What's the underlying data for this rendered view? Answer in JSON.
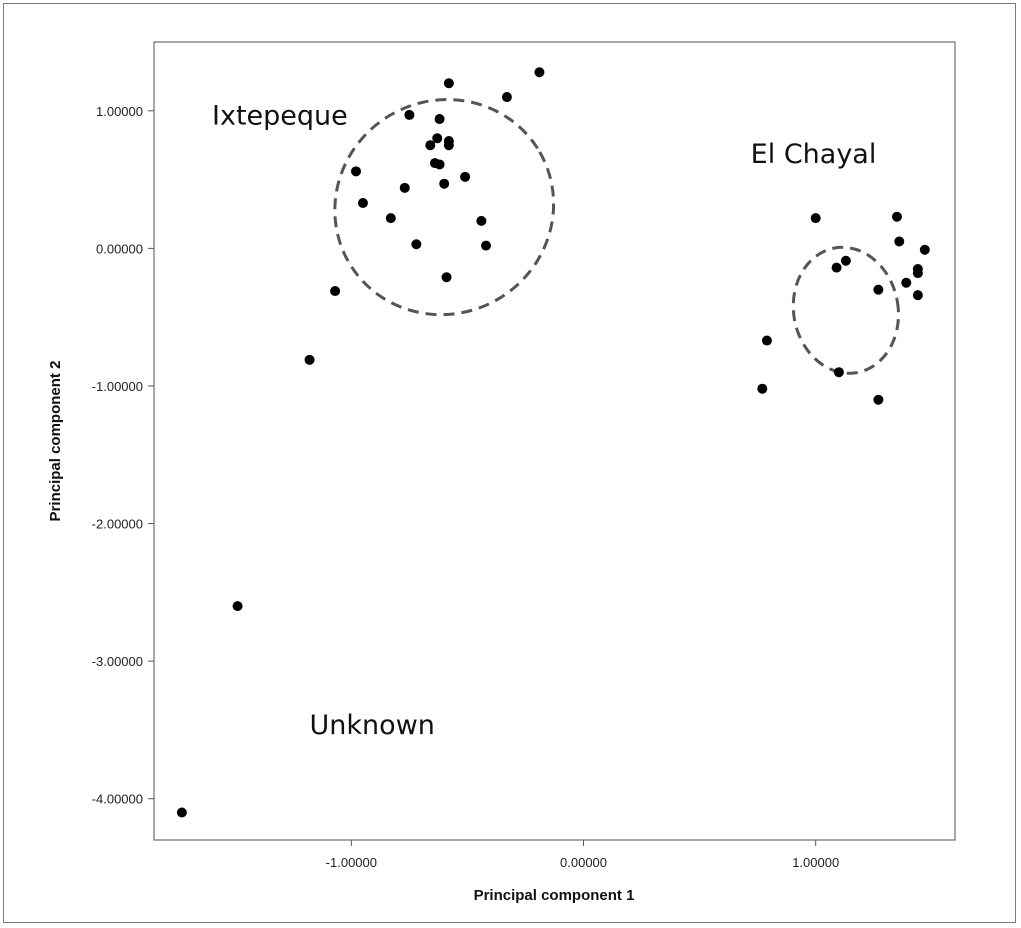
{
  "chart_data": {
    "type": "scatter",
    "title": "",
    "xlabel": "Principal component 1",
    "ylabel": "Principal component 2",
    "xlim": [
      -1.85,
      1.6
    ],
    "ylim": [
      -4.3,
      1.5
    ],
    "x_ticks": [
      {
        "value": -1.0,
        "label": "-1.00000"
      },
      {
        "value": 0.0,
        "label": "0.00000"
      },
      {
        "value": 1.0,
        "label": "1.00000"
      }
    ],
    "y_ticks": [
      {
        "value": 1.0,
        "label": "1.00000"
      },
      {
        "value": 0.0,
        "label": "0.00000"
      },
      {
        "value": -1.0,
        "label": "-1.00000"
      },
      {
        "value": -2.0,
        "label": "-2.00000"
      },
      {
        "value": -3.0,
        "label": "-3.00000"
      },
      {
        "value": -4.0,
        "label": "-4.00000"
      }
    ],
    "grid": false,
    "legend": "none",
    "marker_color": "#000000",
    "cluster_outline_color": "#555555",
    "points": [
      {
        "x": -0.19,
        "y": 1.28
      },
      {
        "x": -0.33,
        "y": 1.1
      },
      {
        "x": -0.58,
        "y": 1.2
      },
      {
        "x": -0.75,
        "y": 0.97
      },
      {
        "x": -0.62,
        "y": 0.94
      },
      {
        "x": -0.63,
        "y": 0.8
      },
      {
        "x": -0.58,
        "y": 0.78
      },
      {
        "x": -0.66,
        "y": 0.75
      },
      {
        "x": -0.58,
        "y": 0.75
      },
      {
        "x": -0.64,
        "y": 0.62
      },
      {
        "x": -0.62,
        "y": 0.61
      },
      {
        "x": -0.98,
        "y": 0.56
      },
      {
        "x": -0.51,
        "y": 0.52
      },
      {
        "x": -0.6,
        "y": 0.47
      },
      {
        "x": -0.77,
        "y": 0.44
      },
      {
        "x": -0.95,
        "y": 0.33
      },
      {
        "x": -0.83,
        "y": 0.22
      },
      {
        "x": -0.44,
        "y": 0.2
      },
      {
        "x": -0.72,
        "y": 0.03
      },
      {
        "x": -0.42,
        "y": 0.02
      },
      {
        "x": -0.59,
        "y": -0.21
      },
      {
        "x": -1.07,
        "y": -0.31
      },
      {
        "x": -1.18,
        "y": -0.81
      },
      {
        "x": 1.0,
        "y": 0.22
      },
      {
        "x": 1.35,
        "y": 0.23
      },
      {
        "x": 1.36,
        "y": 0.05
      },
      {
        "x": 1.47,
        "y": -0.01
      },
      {
        "x": 1.13,
        "y": -0.09
      },
      {
        "x": 1.09,
        "y": -0.14
      },
      {
        "x": 1.44,
        "y": -0.15
      },
      {
        "x": 1.44,
        "y": -0.18
      },
      {
        "x": 1.39,
        "y": -0.25
      },
      {
        "x": 1.27,
        "y": -0.3
      },
      {
        "x": 1.44,
        "y": -0.34
      },
      {
        "x": 0.79,
        "y": -0.67
      },
      {
        "x": 1.1,
        "y": -0.9
      },
      {
        "x": 0.77,
        "y": -1.02
      },
      {
        "x": 1.27,
        "y": -1.1
      },
      {
        "x": -1.49,
        "y": -2.6
      },
      {
        "x": -1.73,
        "y": -4.1
      }
    ],
    "annotations": [
      {
        "text": "Ixtepeque",
        "x": -1.6,
        "y": 0.9
      },
      {
        "text": "El Chayal",
        "x": 0.72,
        "y": 0.62
      },
      {
        "text": "Unknown",
        "x": -1.18,
        "y": -3.53
      }
    ],
    "cluster_outlines": [
      {
        "name": "Ixtepeque",
        "cx": -0.6,
        "cy": 0.3,
        "rx": 0.95,
        "ry": 1.55,
        "rotation_deg": -30
      },
      {
        "name": "El Chayal",
        "cx": 1.13,
        "cy": -0.45,
        "rx": 0.45,
        "ry": 0.92,
        "rotation_deg": -10
      }
    ]
  }
}
